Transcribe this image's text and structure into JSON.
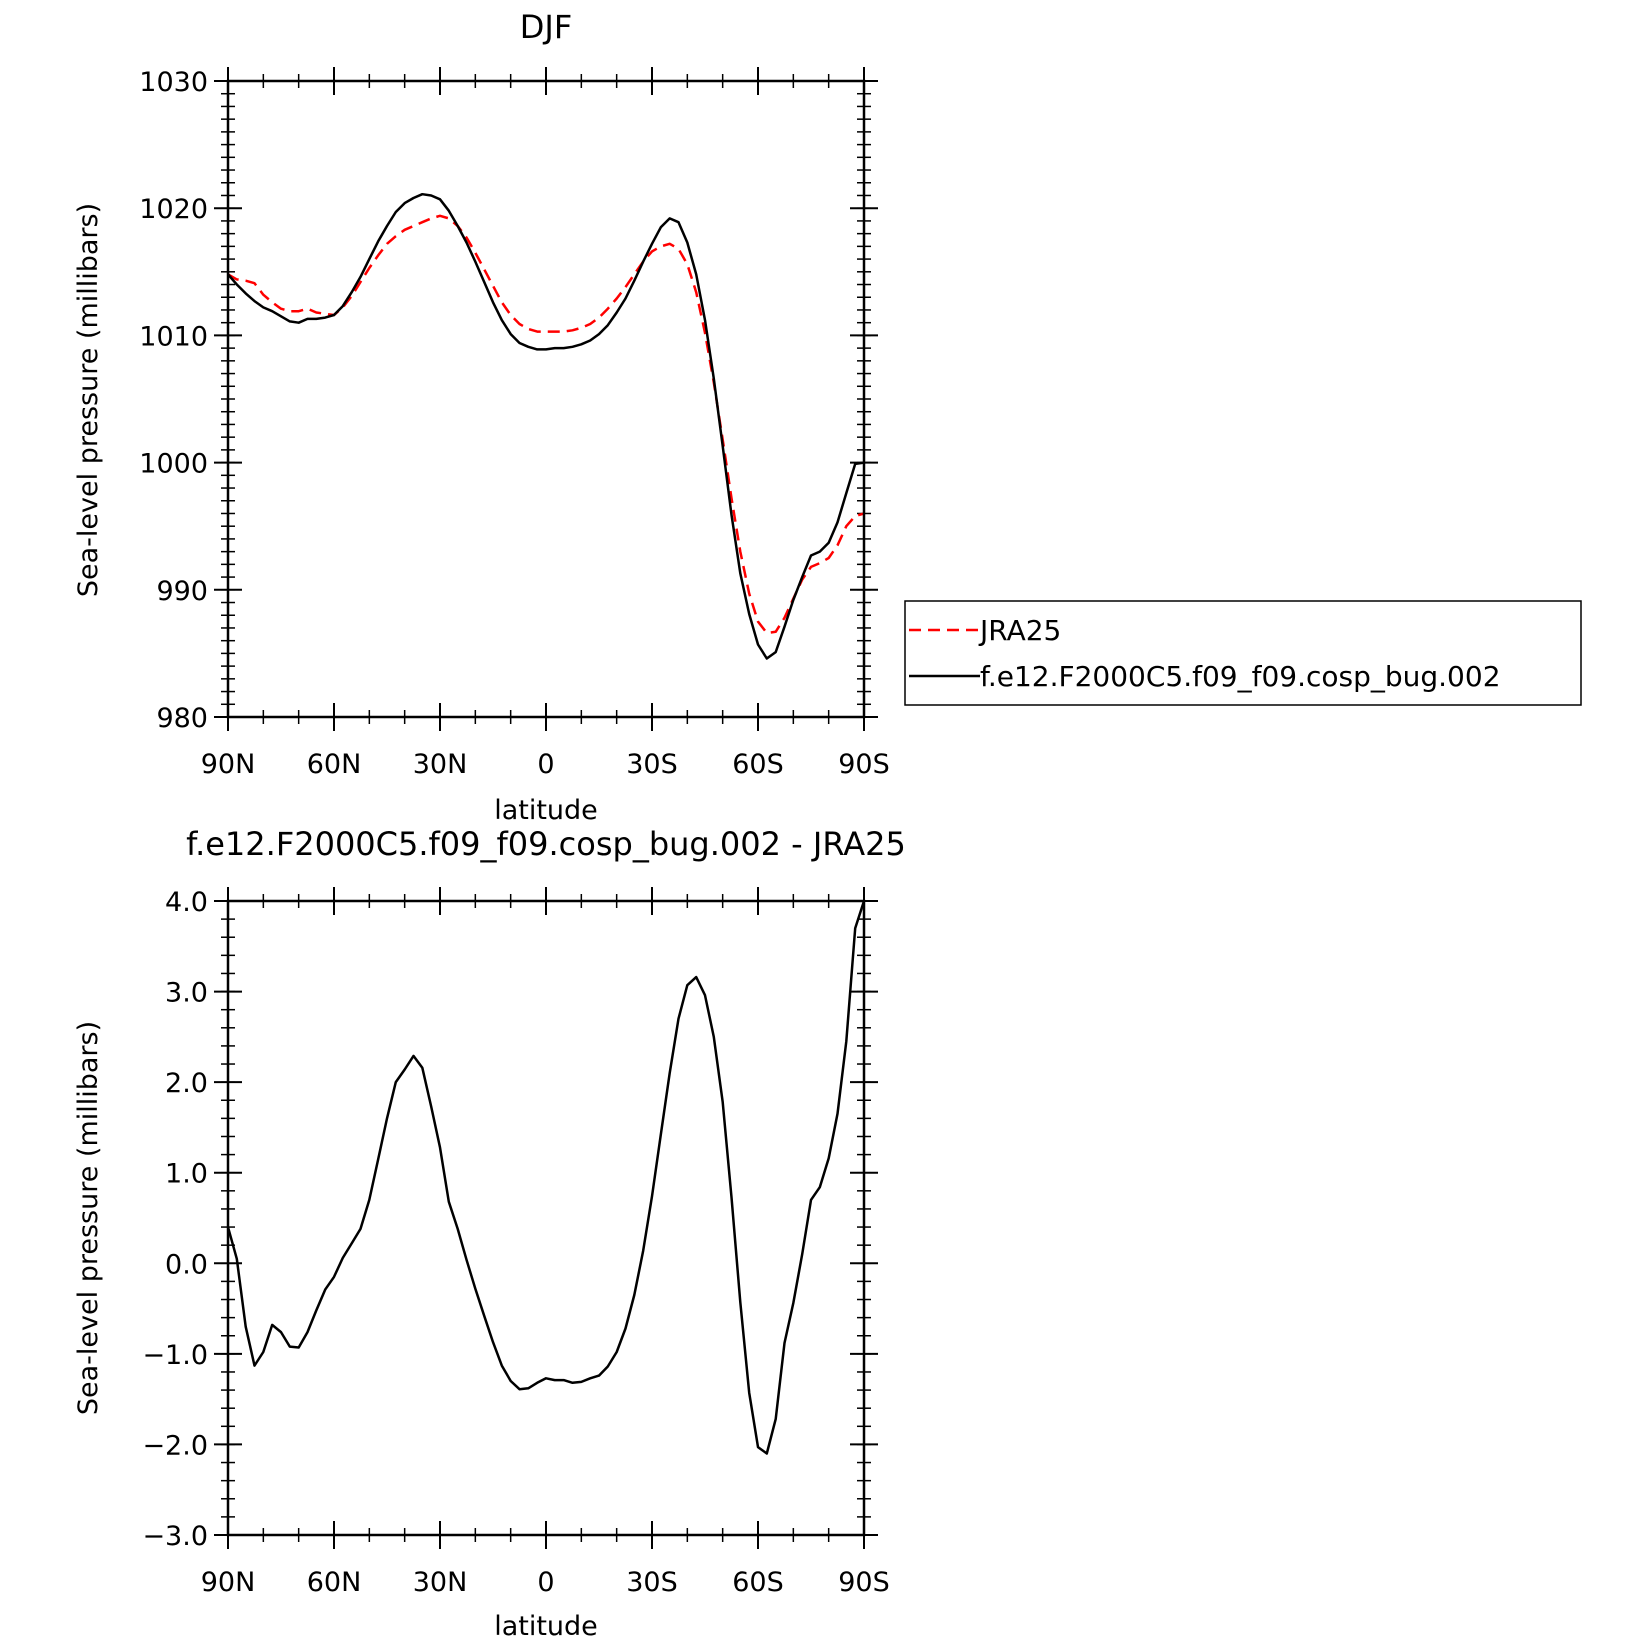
{
  "chart_data": [
    {
      "type": "line",
      "title": "DJF",
      "xlabel": "latitude",
      "ylabel": "Sea-level pressure (millibars)",
      "xlim": [
        90,
        -90
      ],
      "ylim": [
        980,
        1030
      ],
      "x_tick_values": [
        90,
        60,
        30,
        0,
        -30,
        -60,
        -90
      ],
      "x_tick_labels": [
        "90N",
        "60N",
        "30N",
        "0",
        "30S",
        "60S",
        "90S"
      ],
      "y_tick_values": [
        980,
        990,
        1000,
        1010,
        1020,
        1030
      ],
      "y_tick_labels": [
        "980",
        "990",
        "1000",
        "1010",
        "1020",
        "1030"
      ],
      "grid": false,
      "legend_position": "right",
      "series": [
        {
          "name": "JRA25",
          "color": "#ff0000",
          "dash": true,
          "points": [
            [
              90,
              1014.8
            ],
            [
              87.5,
              1014.4
            ],
            [
              85,
              1014.3
            ],
            [
              82.5,
              1014.1
            ],
            [
              80,
              1013.2
            ],
            [
              77.5,
              1012.6
            ],
            [
              75,
              1012.1
            ],
            [
              72.5,
              1011.9
            ],
            [
              70,
              1011.9
            ],
            [
              67.5,
              1012.1
            ],
            [
              65,
              1011.8
            ],
            [
              62.5,
              1011.7
            ],
            [
              60,
              1011.6
            ],
            [
              57.5,
              1012.2
            ],
            [
              55,
              1013.1
            ],
            [
              52.5,
              1014.2
            ],
            [
              50,
              1015.3
            ],
            [
              47.5,
              1016.3
            ],
            [
              45,
              1017.2
            ],
            [
              42.5,
              1017.8
            ],
            [
              40,
              1018.3
            ],
            [
              37.5,
              1018.6
            ],
            [
              35,
              1018.9
            ],
            [
              32.5,
              1019.2
            ],
            [
              30,
              1019.4
            ],
            [
              27.5,
              1019.2
            ],
            [
              25,
              1018.6
            ],
            [
              22.5,
              1017.7
            ],
            [
              20,
              1016.5
            ],
            [
              17.5,
              1015.2
            ],
            [
              15,
              1013.9
            ],
            [
              12.5,
              1012.6
            ],
            [
              10,
              1011.6
            ],
            [
              7.5,
              1010.9
            ],
            [
              5,
              1010.5
            ],
            [
              2.5,
              1010.3
            ],
            [
              0,
              1010.3
            ],
            [
              -2.5,
              1010.3
            ],
            [
              -5,
              1010.3
            ],
            [
              -7.5,
              1010.4
            ],
            [
              -10,
              1010.6
            ],
            [
              -12.5,
              1010.9
            ],
            [
              -15,
              1011.4
            ],
            [
              -17.5,
              1012.1
            ],
            [
              -20,
              1012.9
            ],
            [
              -22.5,
              1013.8
            ],
            [
              -25,
              1014.8
            ],
            [
              -27.5,
              1015.8
            ],
            [
              -30,
              1016.6
            ],
            [
              -32.5,
              1017.0
            ],
            [
              -35,
              1017.2
            ],
            [
              -37.5,
              1016.8
            ],
            [
              -40,
              1015.6
            ],
            [
              -42.5,
              1013.4
            ],
            [
              -45,
              1010.2
            ],
            [
              -47.5,
              1006.3
            ],
            [
              -50,
              1001.8
            ],
            [
              -52.5,
              997.2
            ],
            [
              -55,
              993.0
            ],
            [
              -57.5,
              989.7
            ],
            [
              -60,
              987.5
            ],
            [
              -62.5,
              986.6
            ],
            [
              -65,
              986.7
            ],
            [
              -67.5,
              987.8
            ],
            [
              -70,
              989.3
            ],
            [
              -72.5,
              990.8
            ],
            [
              -75,
              991.8
            ],
            [
              -77.5,
              992.1
            ],
            [
              -80,
              992.5
            ],
            [
              -82.5,
              993.5
            ],
            [
              -85,
              995.0
            ],
            [
              -87.5,
              995.8
            ],
            [
              -90,
              996.0
            ]
          ]
        },
        {
          "name": "f.e12.F2000C5.f09_f09.cosp_bug.002",
          "color": "#000000",
          "dash": false,
          "points": [
            [
              90,
              1014.8
            ],
            [
              87.5,
              1014.0
            ],
            [
              85,
              1013.3
            ],
            [
              82.5,
              1012.7
            ],
            [
              80,
              1012.2
            ],
            [
              77.5,
              1011.9
            ],
            [
              75,
              1011.5
            ],
            [
              72.5,
              1011.1
            ],
            [
              70,
              1011.0
            ],
            [
              67.5,
              1011.3
            ],
            [
              65,
              1011.3
            ],
            [
              62.5,
              1011.4
            ],
            [
              60,
              1011.6
            ],
            [
              57.5,
              1012.3
            ],
            [
              55,
              1013.4
            ],
            [
              52.5,
              1014.6
            ],
            [
              50,
              1016.0
            ],
            [
              47.5,
              1017.4
            ],
            [
              45,
              1018.6
            ],
            [
              42.5,
              1019.7
            ],
            [
              40,
              1020.4
            ],
            [
              37.5,
              1020.8
            ],
            [
              35,
              1021.1
            ],
            [
              32.5,
              1021.0
            ],
            [
              30,
              1020.7
            ],
            [
              27.5,
              1019.8
            ],
            [
              25,
              1018.6
            ],
            [
              22.5,
              1017.3
            ],
            [
              20,
              1015.8
            ],
            [
              17.5,
              1014.2
            ],
            [
              15,
              1012.6
            ],
            [
              12.5,
              1011.2
            ],
            [
              10,
              1010.1
            ],
            [
              7.5,
              1009.4
            ],
            [
              5,
              1009.1
            ],
            [
              2.5,
              1008.9
            ],
            [
              0,
              1008.9
            ],
            [
              -2.5,
              1009.0
            ],
            [
              -5,
              1009.0
            ],
            [
              -7.5,
              1009.1
            ],
            [
              -10,
              1009.3
            ],
            [
              -12.5,
              1009.6
            ],
            [
              -15,
              1010.1
            ],
            [
              -17.5,
              1010.8
            ],
            [
              -20,
              1011.8
            ],
            [
              -22.5,
              1012.9
            ],
            [
              -25,
              1014.3
            ],
            [
              -27.5,
              1015.8
            ],
            [
              -30,
              1017.2
            ],
            [
              -32.5,
              1018.5
            ],
            [
              -35,
              1019.2
            ],
            [
              -37.5,
              1018.9
            ],
            [
              -40,
              1017.3
            ],
            [
              -42.5,
              1014.8
            ],
            [
              -45,
              1011.2
            ],
            [
              -47.5,
              1006.6
            ],
            [
              -50,
              1001.3
            ],
            [
              -52.5,
              995.9
            ],
            [
              -55,
              991.3
            ],
            [
              -57.5,
              988.1
            ],
            [
              -60,
              985.7
            ],
            [
              -62.5,
              984.6
            ],
            [
              -65,
              985.1
            ],
            [
              -67.5,
              987.1
            ],
            [
              -70,
              989.2
            ],
            [
              -72.5,
              991.0
            ],
            [
              -75,
              992.7
            ],
            [
              -77.5,
              993.0
            ],
            [
              -80,
              993.7
            ],
            [
              -82.5,
              995.3
            ],
            [
              -85,
              997.6
            ],
            [
              -87.5,
              999.9
            ],
            [
              -90,
              1000.0
            ]
          ]
        }
      ]
    },
    {
      "type": "line",
      "title": "f.e12.F2000C5.f09_f09.cosp_bug.002 - JRA25",
      "xlabel": "latitude",
      "ylabel": "Sea-level pressure (millibars)",
      "xlim": [
        90,
        -90
      ],
      "ylim": [
        -3,
        4
      ],
      "x_tick_values": [
        90,
        60,
        30,
        0,
        -30,
        -60,
        -90
      ],
      "x_tick_labels": [
        "90N",
        "60N",
        "30N",
        "0",
        "30S",
        "60S",
        "90S"
      ],
      "y_tick_values": [
        -3,
        -2,
        -1,
        0,
        1,
        2,
        3,
        4
      ],
      "y_tick_labels": [
        "−3.0",
        "−2.0",
        "−1.0",
        "0.0",
        "1.0",
        "2.0",
        "3.0",
        "4.0"
      ],
      "grid": false,
      "series": [
        {
          "color": "#000000",
          "dash": false,
          "points": [
            [
              90,
              0.4
            ],
            [
              87.5,
              0.05
            ],
            [
              85,
              -0.7
            ],
            [
              82.5,
              -1.13
            ],
            [
              80,
              -0.98
            ],
            [
              77.5,
              -0.68
            ],
            [
              75,
              -0.76
            ],
            [
              72.5,
              -0.92
            ],
            [
              70,
              -0.93
            ],
            [
              67.5,
              -0.76
            ],
            [
              65,
              -0.52
            ],
            [
              62.5,
              -0.29
            ],
            [
              60,
              -0.15
            ],
            [
              57.5,
              0.06
            ],
            [
              55,
              0.22
            ],
            [
              52.5,
              0.38
            ],
            [
              50,
              0.7
            ],
            [
              47.5,
              1.15
            ],
            [
              45,
              1.6
            ],
            [
              42.5,
              2.0
            ],
            [
              40,
              2.14
            ],
            [
              37.5,
              2.29
            ],
            [
              35,
              2.16
            ],
            [
              32.5,
              1.73
            ],
            [
              30,
              1.28
            ],
            [
              27.5,
              0.68
            ],
            [
              25,
              0.38
            ],
            [
              22.5,
              0.04
            ],
            [
              20,
              -0.28
            ],
            [
              17.5,
              -0.58
            ],
            [
              15,
              -0.87
            ],
            [
              12.5,
              -1.13
            ],
            [
              10,
              -1.3
            ],
            [
              7.5,
              -1.39
            ],
            [
              5,
              -1.38
            ],
            [
              2.5,
              -1.32
            ],
            [
              0,
              -1.27
            ],
            [
              -2.5,
              -1.29
            ],
            [
              -5,
              -1.29
            ],
            [
              -7.5,
              -1.32
            ],
            [
              -10,
              -1.31
            ],
            [
              -12.5,
              -1.27
            ],
            [
              -15,
              -1.24
            ],
            [
              -17.5,
              -1.14
            ],
            [
              -20,
              -0.98
            ],
            [
              -22.5,
              -0.72
            ],
            [
              -25,
              -0.35
            ],
            [
              -27.5,
              0.14
            ],
            [
              -30,
              0.74
            ],
            [
              -32.5,
              1.42
            ],
            [
              -35,
              2.1
            ],
            [
              -37.5,
              2.7
            ],
            [
              -40,
              3.07
            ],
            [
              -42.5,
              3.16
            ],
            [
              -45,
              2.96
            ],
            [
              -47.5,
              2.5
            ],
            [
              -50,
              1.78
            ],
            [
              -52.5,
              0.73
            ],
            [
              -55,
              -0.43
            ],
            [
              -57.5,
              -1.43
            ],
            [
              -60,
              -2.03
            ],
            [
              -62.5,
              -2.1
            ],
            [
              -65,
              -1.72
            ],
            [
              -67.5,
              -0.88
            ],
            [
              -70,
              -0.44
            ],
            [
              -72.5,
              0.1
            ],
            [
              -75,
              0.7
            ],
            [
              -77.5,
              0.84
            ],
            [
              -80,
              1.16
            ],
            [
              -82.5,
              1.65
            ],
            [
              -85,
              2.45
            ],
            [
              -87.5,
              3.7
            ],
            [
              -90,
              4.0
            ]
          ]
        }
      ]
    }
  ]
}
